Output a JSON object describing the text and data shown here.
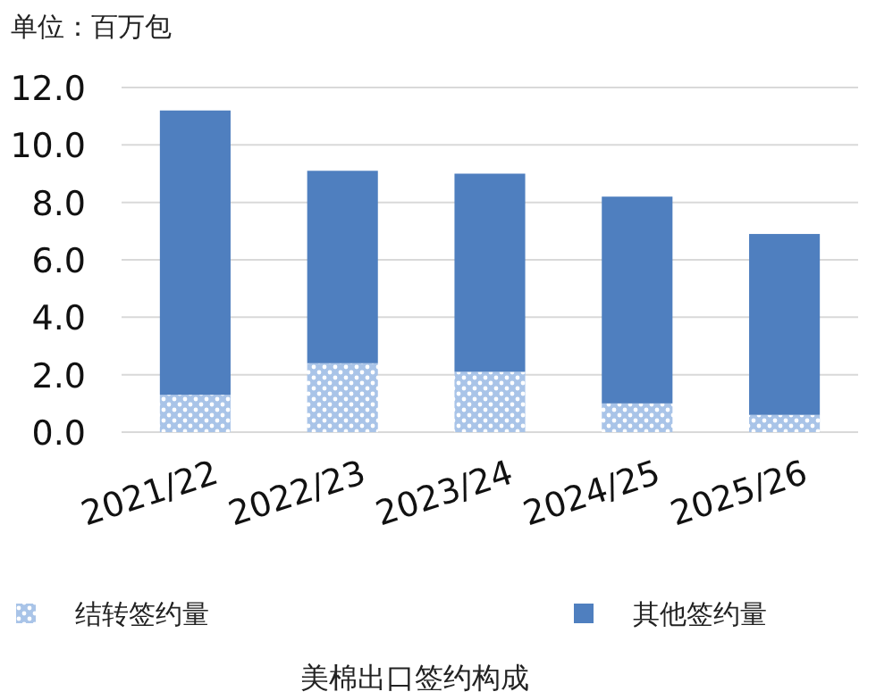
{
  "chart_data": {
    "type": "bar",
    "title": "美棉出口签约构成",
    "ylabel": "单位：百万包",
    "categories": [
      "2021/22",
      "2022/23",
      "2023/24",
      "2024/25",
      "2025/26"
    ],
    "stacked": true,
    "series": [
      {
        "name": "结转签约量",
        "color": "#a9c4e8",
        "values": [
          1.3,
          2.4,
          2.1,
          1.0,
          0.6
        ]
      },
      {
        "name": "其他签约量",
        "color": "#4f7fbf",
        "values": [
          9.9,
          6.7,
          6.9,
          7.2,
          6.3
        ]
      }
    ],
    "ylim": [
      0,
      12
    ],
    "yticks": [
      {
        "value": 0,
        "label": "0.0"
      },
      {
        "value": 2,
        "label": "2.0"
      },
      {
        "value": 4,
        "label": "4.0"
      },
      {
        "value": 6,
        "label": "6.0"
      },
      {
        "value": 8,
        "label": "8.0"
      },
      {
        "value": 10,
        "label": "10.0"
      },
      {
        "value": 12,
        "label": "12.0"
      }
    ],
    "grid": "y",
    "legend": "bottom"
  }
}
